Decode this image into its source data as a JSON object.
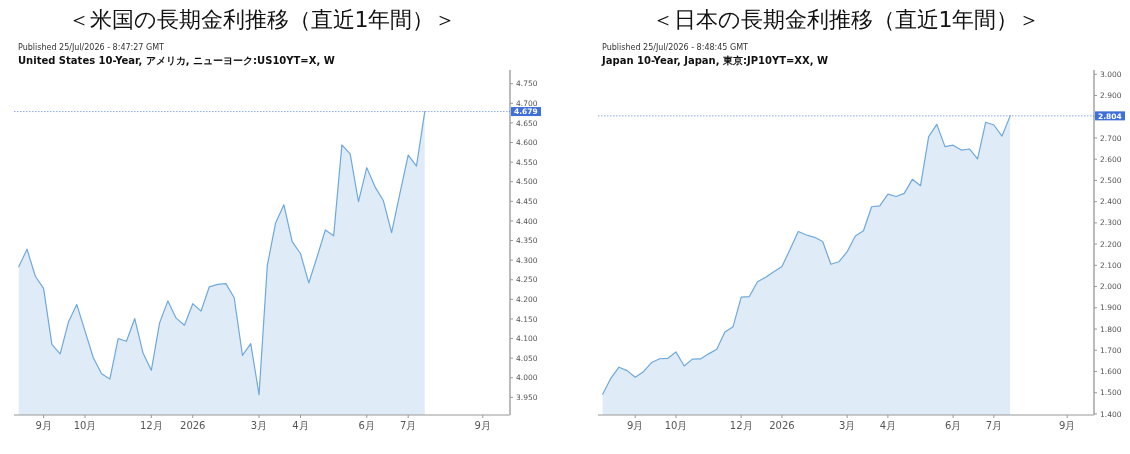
{
  "chart_data": [
    {
      "type": "area",
      "title": "＜米国の長期金利推移（直近1年間）＞",
      "subtitle": "United States 10-Year, アメリカ, ニューヨーク:US10YT=X, W",
      "annotations": [
        "Published 25/Jul/2026 - 8:47:27 GMT"
      ],
      "x": [
        "2025-08-11",
        "2025-08-18",
        "2025-08-25",
        "2025-09-01",
        "2025-09-08",
        "2025-09-15",
        "2025-09-22",
        "2025-09-29",
        "2025-10-06",
        "2025-10-13",
        "2025-10-20",
        "2025-10-27",
        "2025-11-03",
        "2025-11-10",
        "2025-11-17",
        "2025-11-24",
        "2025-12-01",
        "2025-12-08",
        "2025-12-15",
        "2025-12-22",
        "2025-12-29",
        "2026-01-05",
        "2026-01-12",
        "2026-01-19",
        "2026-01-26",
        "2026-02-02",
        "2026-02-09",
        "2026-02-16",
        "2026-02-23",
        "2026-03-02",
        "2026-03-09",
        "2026-03-16",
        "2026-03-23",
        "2026-03-30",
        "2026-04-06",
        "2026-04-13",
        "2026-04-20",
        "2026-04-27",
        "2026-05-04",
        "2026-05-11",
        "2026-05-18",
        "2026-05-25",
        "2026-06-01",
        "2026-06-08",
        "2026-06-15",
        "2026-06-22",
        "2026-06-29",
        "2026-07-06",
        "2026-07-13",
        "2026-07-20"
      ],
      "series": [
        {
          "color": "#6fa8dc",
          "values": [
            4.283,
            4.328,
            4.259,
            4.228,
            4.085,
            4.061,
            4.142,
            4.187,
            4.119,
            4.051,
            4.01,
            3.997,
            4.1,
            4.093,
            4.151,
            4.063,
            4.019,
            4.14,
            4.196,
            4.152,
            4.134,
            4.189,
            4.17,
            4.232,
            4.238,
            4.24,
            4.204,
            4.057,
            4.087,
            3.957,
            4.287,
            4.395,
            4.441,
            4.347,
            4.317,
            4.242,
            4.308,
            4.377,
            4.362,
            4.594,
            4.571,
            4.449,
            4.536,
            4.487,
            4.452,
            4.37,
            4.47,
            4.568,
            4.54,
            4.679
          ]
        }
      ],
      "xlim": [
        "2025-08-07",
        "2026-09-30"
      ],
      "xticks": [
        {
          "value": "2025-09-01",
          "label": "9月"
        },
        {
          "value": "2025-10-06",
          "label": "10月"
        },
        {
          "value": "2025-12-01",
          "label": "12月"
        },
        {
          "value": "2026-01-05",
          "label": "2026"
        },
        {
          "value": "2026-03-02",
          "label": "3月"
        },
        {
          "value": "2026-04-06",
          "label": "4月"
        },
        {
          "value": "2026-06-01",
          "label": "6月"
        },
        {
          "value": "2026-07-06",
          "label": "7月"
        },
        {
          "value": "2026-09-07",
          "label": "9月"
        }
      ],
      "ylim": [
        3.905,
        4.785
      ],
      "yticks": [
        {
          "value": 3.95,
          "label": "3.950"
        },
        {
          "value": 4.0,
          "label": "4.000"
        },
        {
          "value": 4.05,
          "label": "4.050"
        },
        {
          "value": 4.1,
          "label": "4.100"
        },
        {
          "value": 4.15,
          "label": "4.150"
        },
        {
          "value": 4.2,
          "label": "4.200"
        },
        {
          "value": 4.25,
          "label": "4.250"
        },
        {
          "value": 4.3,
          "label": "4.300"
        },
        {
          "value": 4.35,
          "label": "4.350"
        },
        {
          "value": 4.4,
          "label": "4.400"
        },
        {
          "value": 4.45,
          "label": "4.450"
        },
        {
          "value": 4.5,
          "label": "4.500"
        },
        {
          "value": 4.55,
          "label": "4.550"
        },
        {
          "value": 4.6,
          "label": "4.600"
        },
        {
          "value": 4.65,
          "label": "4.650"
        },
        {
          "value": 4.7,
          "label": "4.700"
        },
        {
          "value": 4.75,
          "label": "4.750"
        }
      ],
      "ref_lines": [
        {
          "axis": "y",
          "value": 4.679,
          "label": "4.679",
          "color": "#3f6fd8",
          "line_style": "dotted"
        }
      ]
    },
    {
      "type": "area",
      "title": "＜日本の長期金利推移（直近1年間）＞",
      "subtitle": "Japan 10-Year, Japan, 東京:JP10YT=XX, W",
      "annotations": [
        "Published 25/Jul/2026 - 8:48:45 GMT"
      ],
      "x": [
        "2025-08-04",
        "2025-08-11",
        "2025-08-18",
        "2025-08-25",
        "2025-09-01",
        "2025-09-08",
        "2025-09-15",
        "2025-09-22",
        "2025-09-29",
        "2025-10-06",
        "2025-10-13",
        "2025-10-20",
        "2025-10-27",
        "2025-11-03",
        "2025-11-10",
        "2025-11-17",
        "2025-11-24",
        "2025-12-01",
        "2025-12-08",
        "2025-12-15",
        "2025-12-22",
        "2025-12-29",
        "2026-01-05",
        "2026-01-12",
        "2026-01-19",
        "2026-01-26",
        "2026-02-02",
        "2026-02-09",
        "2026-02-16",
        "2026-02-23",
        "2026-03-02",
        "2026-03-09",
        "2026-03-16",
        "2026-03-23",
        "2026-03-30",
        "2026-04-06",
        "2026-04-13",
        "2026-04-20",
        "2026-04-27",
        "2026-05-04",
        "2026-05-11",
        "2026-05-18",
        "2026-05-25",
        "2026-06-01",
        "2026-06-08",
        "2026-06-15",
        "2026-06-22",
        "2026-06-29",
        "2026-07-06",
        "2026-07-13",
        "2026-07-20"
      ],
      "series": [
        {
          "color": "#6fa8dc",
          "values": [
            1.493,
            1.568,
            1.62,
            1.604,
            1.573,
            1.599,
            1.642,
            1.66,
            1.662,
            1.692,
            1.626,
            1.658,
            1.659,
            1.683,
            1.705,
            1.786,
            1.811,
            1.95,
            1.953,
            2.023,
            2.044,
            2.07,
            2.094,
            2.176,
            2.259,
            2.243,
            2.232,
            2.212,
            2.105,
            2.117,
            2.164,
            2.238,
            2.263,
            2.376,
            2.38,
            2.435,
            2.424,
            2.439,
            2.505,
            2.475,
            2.706,
            2.764,
            2.659,
            2.666,
            2.643,
            2.648,
            2.601,
            2.774,
            2.761,
            2.709,
            2.804
          ]
        }
      ],
      "xlim": [
        "2025-07-31",
        "2026-09-30"
      ],
      "xticks": [
        {
          "value": "2025-09-01",
          "label": "9月"
        },
        {
          "value": "2025-10-06",
          "label": "10月"
        },
        {
          "value": "2025-12-01",
          "label": "12月"
        },
        {
          "value": "2026-01-05",
          "label": "2026"
        },
        {
          "value": "2026-03-02",
          "label": "3月"
        },
        {
          "value": "2026-04-06",
          "label": "4月"
        },
        {
          "value": "2026-06-01",
          "label": "6月"
        },
        {
          "value": "2026-07-06",
          "label": "7月"
        },
        {
          "value": "2026-09-07",
          "label": "9月"
        }
      ],
      "ylim": [
        1.395,
        3.02
      ],
      "yticks": [
        {
          "value": 1.4,
          "label": "1.400"
        },
        {
          "value": 1.5,
          "label": "1.500"
        },
        {
          "value": 1.6,
          "label": "1.600"
        },
        {
          "value": 1.7,
          "label": "1.700"
        },
        {
          "value": 1.8,
          "label": "1.800"
        },
        {
          "value": 1.9,
          "label": "1.900"
        },
        {
          "value": 2.0,
          "label": "2.000"
        },
        {
          "value": 2.1,
          "label": "2.100"
        },
        {
          "value": 2.2,
          "label": "2.200"
        },
        {
          "value": 2.3,
          "label": "2.300"
        },
        {
          "value": 2.4,
          "label": "2.400"
        },
        {
          "value": 2.5,
          "label": "2.500"
        },
        {
          "value": 2.6,
          "label": "2.600"
        },
        {
          "value": 2.7,
          "label": "2.700"
        },
        {
          "value": 2.8,
          "label": null
        },
        {
          "value": 2.9,
          "label": "2.900"
        },
        {
          "value": 3.0,
          "label": "3.000"
        }
      ],
      "ref_lines": [
        {
          "axis": "y",
          "value": 2.804,
          "label": "2.804",
          "color": "#3f6fd8",
          "line_style": "dotted"
        }
      ]
    }
  ]
}
